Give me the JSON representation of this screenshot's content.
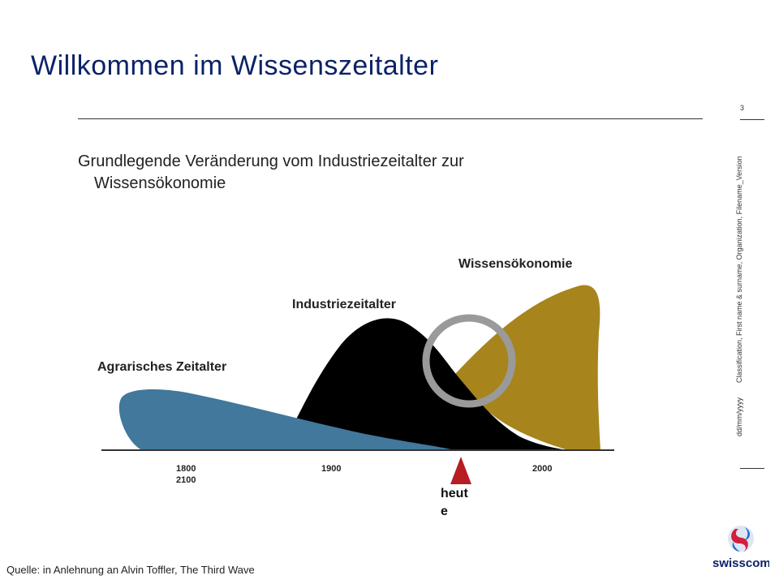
{
  "slide": {
    "title": "Willkommen im Wissenszeitalter",
    "subtitle_line1": "Grundlegende Veränderung vom Industriezeitalter zur",
    "subtitle_line2": "Wissensökonomie",
    "page_number": "3",
    "side_date": "dd/mm/yyyy",
    "side_info": "Classification, First name & surname, Organization, Filename_Version",
    "source": "Quelle: in Anlehnung an Alvin Toffler, The Third Wave"
  },
  "diagram": {
    "eras": [
      {
        "label": "Agrarisches Zeitalter",
        "color": "#41789c"
      },
      {
        "label": "Industriezeitalter",
        "color": "#000000"
      },
      {
        "label": "Wissensökonomie",
        "color": "#a8841c"
      }
    ],
    "axis_labels": [
      "1800",
      "1900",
      "2000",
      "2100"
    ],
    "marker_label_1": "heut",
    "marker_label_2": "e",
    "marker_color": "#b81d24",
    "ring_color": "#9a9a9a"
  },
  "logo": {
    "text": "swisscom",
    "icon": "swisscom-logo-icon"
  }
}
